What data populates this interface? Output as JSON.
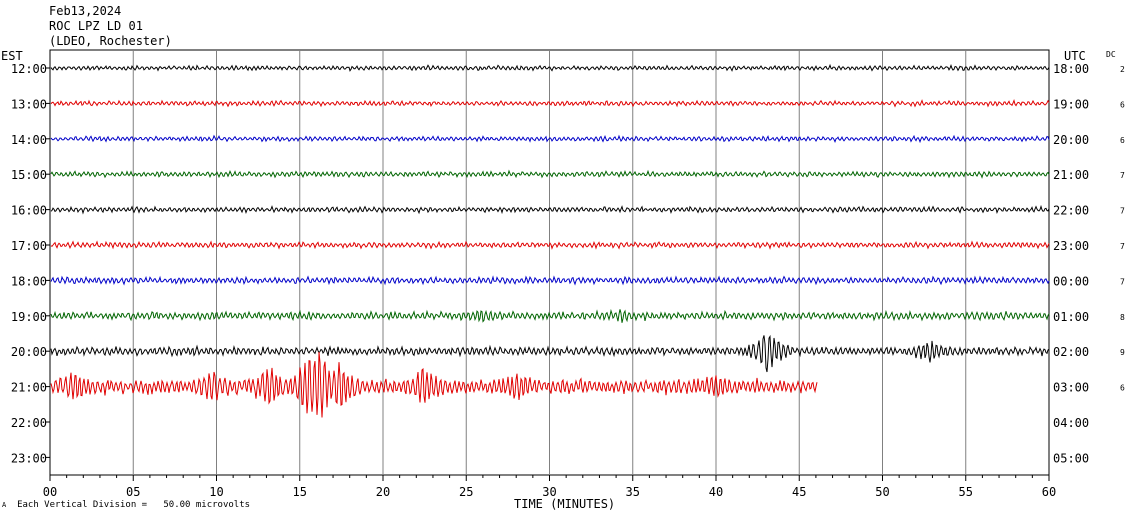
{
  "header": {
    "date": "Feb13,2024",
    "station": "ROC LPZ LD 01",
    "network": "(LDEO, Rochester)"
  },
  "left_tz": "EST",
  "right_tz": "UTC",
  "dc_label": "DC",
  "footer": {
    "scale_note": "Each Vertical Division =   50.00 microvolts",
    "mark": "A"
  },
  "chart_data": {
    "type": "line",
    "title": "ROC LPZ LD 01",
    "xlabel": "TIME (MINUTES)",
    "xlim": [
      0,
      60
    ],
    "x_ticks": [
      "00",
      "05",
      "10",
      "15",
      "20",
      "25",
      "30",
      "35",
      "40",
      "45",
      "50",
      "55",
      "60"
    ],
    "row_colors": [
      "#000000",
      "#e00000",
      "#0000c8",
      "#006400"
    ],
    "rows": [
      {
        "est": "12:00",
        "utc": "18:00",
        "dc": "2",
        "end_minute": 60,
        "amplitude": 1.5
      },
      {
        "est": "13:00",
        "utc": "19:00",
        "dc": "6",
        "end_minute": 60,
        "amplitude": 1.6
      },
      {
        "est": "14:00",
        "utc": "20:00",
        "dc": "6",
        "end_minute": 60,
        "amplitude": 1.6
      },
      {
        "est": "15:00",
        "utc": "21:00",
        "dc": "7",
        "end_minute": 60,
        "amplitude": 1.8
      },
      {
        "est": "16:00",
        "utc": "22:00",
        "dc": "7",
        "end_minute": 60,
        "amplitude": 1.8
      },
      {
        "est": "17:00",
        "utc": "23:00",
        "dc": "7",
        "end_minute": 60,
        "amplitude": 1.9
      },
      {
        "est": "18:00",
        "utc": "00:00",
        "dc": "7",
        "end_minute": 60,
        "amplitude": 2.2
      },
      {
        "est": "19:00",
        "utc": "01:00",
        "dc": "8",
        "end_minute": 60,
        "amplitude": 2.6,
        "events": [
          {
            "minute": 26,
            "amp": 4
          },
          {
            "minute": 34.5,
            "amp": 3
          }
        ]
      },
      {
        "est": "20:00",
        "utc": "02:00",
        "dc": "9",
        "end_minute": 60,
        "amplitude": 2.8,
        "events": [
          {
            "minute": 43.1,
            "amp": 22
          },
          {
            "minute": 52.8,
            "amp": 9
          }
        ]
      },
      {
        "est": "21:00",
        "utc": "03:00",
        "dc": "6",
        "end_minute": 46.1,
        "amplitude": 5,
        "events": [
          {
            "minute": 1.5,
            "amp": 9
          },
          {
            "minute": 9.8,
            "amp": 12
          },
          {
            "minute": 13.2,
            "amp": 18
          },
          {
            "minute": 15.5,
            "amp": 30
          },
          {
            "minute": 16.2,
            "amp": 35
          },
          {
            "minute": 17.4,
            "amp": 20
          },
          {
            "minute": 22.5,
            "amp": 16
          },
          {
            "minute": 28,
            "amp": 9
          },
          {
            "minute": 40,
            "amp": 7
          }
        ]
      },
      {
        "est": "22:00",
        "utc": "04:00",
        "dc": "",
        "end_minute": 0,
        "amplitude": 0
      },
      {
        "est": "23:00",
        "utc": "05:00",
        "dc": "",
        "end_minute": 0,
        "amplitude": 0
      }
    ]
  }
}
